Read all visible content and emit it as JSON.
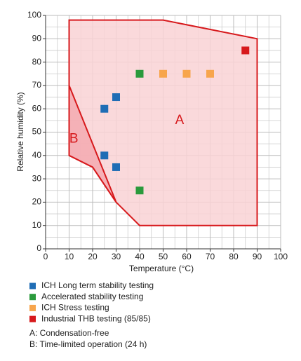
{
  "chart_data": {
    "type": "scatter",
    "xlabel": "Temperature (°C)",
    "ylabel": "Relative humidity (%)",
    "xlim": [
      0,
      100
    ],
    "ylim": [
      0,
      100
    ],
    "xticks": [
      0,
      10,
      20,
      30,
      40,
      50,
      60,
      70,
      80,
      90,
      100
    ],
    "yticks": [
      0,
      10,
      20,
      30,
      40,
      50,
      60,
      70,
      80,
      90,
      100
    ],
    "xminor": [
      5,
      15,
      25,
      35,
      45,
      55,
      65,
      75,
      85,
      95
    ],
    "yminor": [
      5,
      15,
      25,
      35,
      45,
      55,
      65,
      75,
      85,
      95
    ],
    "grid": true,
    "regions": [
      {
        "name": "A",
        "color": "#f9d2d5",
        "edge": "#d7191c",
        "x": [
          10,
          50,
          90,
          90,
          40,
          30,
          20,
          10
        ],
        "y": [
          98,
          98,
          90,
          10,
          10,
          20,
          35,
          40
        ]
      },
      {
        "name": "B",
        "color": "#f3a9b0",
        "edge": "#d7191c",
        "x": [
          10,
          30,
          20,
          10
        ],
        "y": [
          70,
          20,
          35,
          40
        ]
      }
    ],
    "series": [
      {
        "name": "ICH Long term stability testing",
        "color": "#1f6db5",
        "x": [
          25,
          30,
          25,
          30
        ],
        "values": [
          60,
          65,
          40,
          35
        ]
      },
      {
        "name": "Accelerated stability testing",
        "color": "#2a9a3c",
        "x": [
          40,
          40
        ],
        "values": [
          75,
          25
        ]
      },
      {
        "name": "ICH Stress testing",
        "color": "#f7a54c",
        "x": [
          50,
          60,
          70
        ],
        "values": [
          75,
          75,
          75
        ]
      },
      {
        "name": "Industrial THB testing (85/85)",
        "color": "#d7191c",
        "x": [
          85
        ],
        "values": [
          85
        ]
      }
    ],
    "notes": [
      "A: Condensation-free",
      "B: Time-limited operation (24 h)"
    ]
  }
}
